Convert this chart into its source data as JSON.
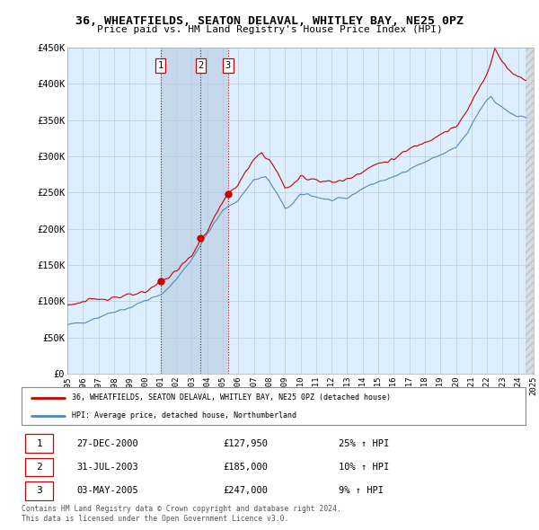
{
  "title": "36, WHEATFIELDS, SEATON DELAVAL, WHITLEY BAY, NE25 0PZ",
  "subtitle": "Price paid vs. HM Land Registry's House Price Index (HPI)",
  "ylim": [
    0,
    450000
  ],
  "yticks": [
    0,
    50000,
    100000,
    150000,
    200000,
    250000,
    300000,
    350000,
    400000,
    450000
  ],
  "ytick_labels": [
    "£0",
    "£50K",
    "£100K",
    "£150K",
    "£200K",
    "£250K",
    "£300K",
    "£350K",
    "£400K",
    "£450K"
  ],
  "red_line_color": "#cc0000",
  "blue_line_color": "#5588bb",
  "sale_marker_color": "#cc0000",
  "vline_color": "#cc0000",
  "background_color": "#ffffff",
  "chart_bg_color": "#ddeeff",
  "highlight_bg_color": "#c8dff0",
  "grid_color": "#bbccdd",
  "legend_label_red": "36, WHEATFIELDS, SEATON DELAVAL, WHITLEY BAY, NE25 0PZ (detached house)",
  "legend_label_blue": "HPI: Average price, detached house, Northumberland",
  "transactions": [
    {
      "label": "1",
      "date_str": "27-DEC-2000",
      "price": 127950,
      "pct": "25%",
      "x_year": 2000.99
    },
    {
      "label": "2",
      "date_str": "31-JUL-2003",
      "price": 185000,
      "pct": "10%",
      "x_year": 2003.58
    },
    {
      "label": "3",
      "date_str": "03-MAY-2005",
      "price": 247000,
      "pct": "9%",
      "x_year": 2005.34
    }
  ],
  "footer_line1": "Contains HM Land Registry data © Crown copyright and database right 2024.",
  "footer_line2": "This data is licensed under the Open Government Licence v3.0.",
  "x_start": 1995.0,
  "x_end": 2025.0,
  "highlight_start": 2000.99,
  "highlight_end": 2005.34,
  "hatch_start": 2024.5,
  "xtick_years": [
    1995,
    1996,
    1997,
    1998,
    1999,
    2000,
    2001,
    2002,
    2003,
    2004,
    2005,
    2006,
    2007,
    2008,
    2009,
    2010,
    2011,
    2012,
    2013,
    2014,
    2015,
    2016,
    2017,
    2018,
    2019,
    2020,
    2021,
    2022,
    2023,
    2024,
    2025
  ]
}
